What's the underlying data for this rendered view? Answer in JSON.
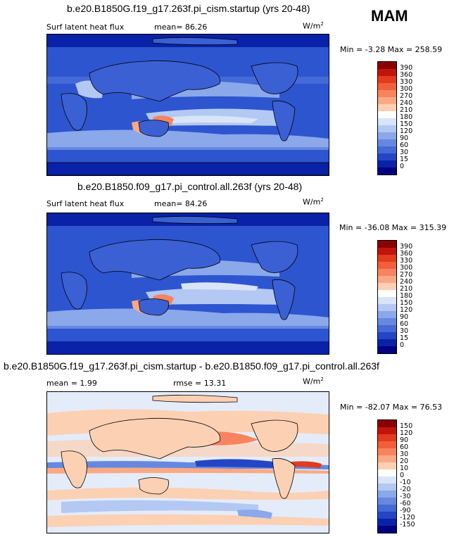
{
  "season": "MAM",
  "units": {
    "base": "W/m",
    "exp": "2"
  },
  "panels": [
    {
      "title": "b.e20.B1850G.f19_g17.263f.pi_cism.startup (yrs 20-48)",
      "variable": "Surf latent heat flux",
      "stat1": "mean=  86.26",
      "stat2": "",
      "minmax": "Min =  -3.28 Max = 258.59",
      "colorbar": {
        "levels": [
          "390",
          "360",
          "330",
          "300",
          "270",
          "240",
          "210",
          "180",
          "150",
          "120",
          "90",
          "60",
          "30",
          "15",
          "0"
        ],
        "colors": [
          "#8b0000",
          "#c0150a",
          "#e23b1e",
          "#f25f3a",
          "#f7845e",
          "#fba985",
          "#fcd0b3",
          "#ffffff",
          "#d8e4f8",
          "#b3c8f2",
          "#8aa8ea",
          "#6688e0",
          "#4569d6",
          "#2446c4",
          "#0a22a8",
          "#000080"
        ]
      }
    },
    {
      "title": "b.e20.B1850.f09_g17.pi_control.all.263f (yrs 20-48)",
      "variable": "Surf latent heat flux",
      "stat1": "mean=  84.26",
      "stat2": "",
      "minmax": "Min = -36.08 Max = 315.39",
      "colorbar": {
        "levels": [
          "390",
          "360",
          "330",
          "300",
          "270",
          "240",
          "210",
          "180",
          "150",
          "120",
          "90",
          "60",
          "30",
          "15",
          "0"
        ],
        "colors": [
          "#8b0000",
          "#c0150a",
          "#e23b1e",
          "#f25f3a",
          "#f7845e",
          "#fba985",
          "#fcd0b3",
          "#ffffff",
          "#d8e4f8",
          "#b3c8f2",
          "#8aa8ea",
          "#6688e0",
          "#4569d6",
          "#2446c4",
          "#0a22a8",
          "#000080"
        ]
      }
    },
    {
      "title": "b.e20.B1850G.f19_g17.263f.pi_cism.startup - b.e20.B1850.f09_g17.pi_control.all.263f",
      "variable": "mean =  1.99",
      "stat1": "",
      "stat2": "rmse =  13.31",
      "minmax": "Min = -82.07 Max =  76.53",
      "colorbar": {
        "levels": [
          "150",
          "120",
          "90",
          "60",
          "30",
          "20",
          "10",
          "0",
          "-10",
          "-20",
          "-30",
          "-60",
          "-90",
          "-120",
          "-150"
        ],
        "colors": [
          "#8b0000",
          "#c0150a",
          "#e23b1e",
          "#f25f3a",
          "#f7845e",
          "#fba985",
          "#fcd0b3",
          "#ffffff",
          "#d8e4f8",
          "#b3c8f2",
          "#8aa8ea",
          "#6688e0",
          "#4569d6",
          "#2446c4",
          "#0a22a8",
          "#000080"
        ]
      }
    }
  ]
}
